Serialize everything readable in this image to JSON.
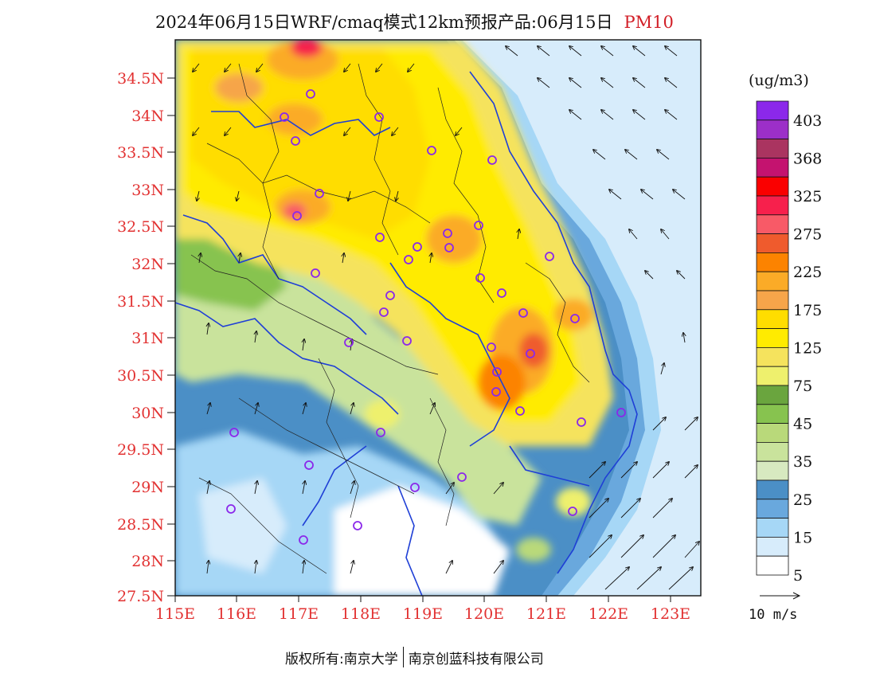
{
  "header": {
    "title": "2024年06月15日WRF/cmaq模式12km预报产品:06月15日",
    "product": "PM10"
  },
  "map": {
    "lat_labels": [
      "34.5N",
      "34N",
      "33.5N",
      "33N",
      "32.5N",
      "32N",
      "31.5N",
      "31N",
      "30.5N",
      "30N",
      "29.5N",
      "29N",
      "28.5N",
      "28N",
      "27.5N"
    ],
    "lon_labels": [
      "115E",
      "116E",
      "117E",
      "118E",
      "119E",
      "120E",
      "121E",
      "122E",
      "123E"
    ],
    "label_color": "#e23232"
  },
  "legend": {
    "unit": "(ug/m3)",
    "colors": [
      "#8b28ea",
      "#9c2fc8",
      "#aa3460",
      "#c4136f",
      "#fa0000",
      "#f7204c",
      "#f85a67",
      "#ef5b2d",
      "#fc8300",
      "#fbab27",
      "#f6a54a",
      "#ffdd00",
      "#ffeb00",
      "#f5e35d",
      "#eef06d",
      "#6aa53e",
      "#87c34f",
      "#b9d97a",
      "#c9e39c",
      "#d7e9c0",
      "#4b8fc6",
      "#69a8dd",
      "#a6d7f6",
      "#d7ecfb",
      "#ffffff"
    ],
    "labels": [
      "403",
      "368",
      "325",
      "275",
      "225",
      "175",
      "125",
      "75",
      "45",
      "35",
      "25",
      "15",
      "5"
    ]
  },
  "wind_reference": "10 m/s",
  "footer": {
    "copyright": "版权所有:南京大学",
    "company": "南京创蓝科技有限公司"
  }
}
